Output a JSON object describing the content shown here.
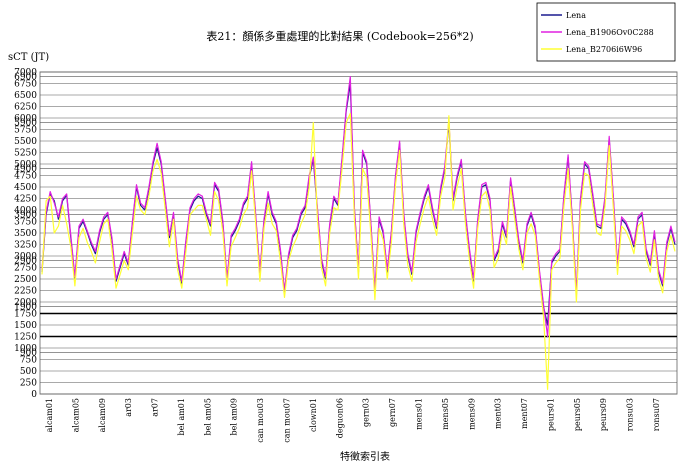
{
  "chart_data": {
    "type": "line",
    "title": "表21：顏係多重處理的比對結果 (Codebook=256*2)",
    "ylabel": "sCT (JT)",
    "xlabel": "特徵索引表",
    "ylim": [
      0,
      7000
    ],
    "grid": true,
    "legend_placement": "top-right",
    "y_ticks": [
      0,
      250,
      500,
      750,
      900,
      1000,
      1250,
      1500,
      1750,
      1900,
      2000,
      2250,
      2500,
      2750,
      2900,
      3000,
      3250,
      3500,
      3750,
      3900,
      4000,
      4250,
      4500,
      4750,
      4900,
      5000,
      5250,
      5500,
      5750,
      5900,
      6000,
      6250,
      6500,
      6750,
      6900,
      7000
    ],
    "y_tick_labels": [
      "0",
      "250",
      "500",
      "750",
      "900",
      "1000",
      "1250",
      "1500",
      "1750",
      "1900",
      "2000",
      "2250",
      "2500",
      "2750",
      "2900",
      "3000",
      "3250",
      "3500",
      "3750",
      "3900",
      "4000",
      "4250",
      "4500",
      "4750",
      "4900",
      "5000",
      "5250",
      "5500",
      "5750",
      "5900",
      "6000",
      "6250",
      "6500",
      "6750",
      "6900",
      "7000"
    ],
    "bold_lines": [
      1250,
      1750
    ],
    "x_tick_labels": [
      "alcam01",
      "alcam05",
      "alcam09",
      "ar03",
      "ar07",
      "bel am01",
      "bel am05",
      "bel am09",
      "can mou03",
      "can mou07",
      "clown01",
      "deguon06",
      "gern03",
      "gern07",
      "mens01",
      "mens05",
      "mens09",
      "ment03",
      "ment07",
      "peurs01",
      "peurs05",
      "peurs09",
      "ronsu03",
      "ronsu07"
    ],
    "colors": {
      "Lena": "#1b1b8f",
      "Lena_B1906Ov0C288": "#e020e0",
      "Lena_B2706i6W96": "#ffff33"
    },
    "series": [
      {
        "name": "Lena",
        "values": [
          2650,
          3900,
          4350,
          4200,
          3800,
          4200,
          4320,
          3400,
          2500,
          3600,
          3750,
          3520,
          3250,
          3050,
          3500,
          3800,
          3900,
          3350,
          2450,
          2750,
          3050,
          2800,
          3700,
          4500,
          4100,
          4000,
          4450,
          5000,
          5350,
          5000,
          4200,
          3400,
          3900,
          2900,
          2400,
          3300,
          4000,
          4200,
          4300,
          4250,
          3900,
          3650,
          4550,
          4400,
          3700,
          2450,
          3400,
          3550,
          3750,
          4100,
          4250,
          5000,
          3850,
          2600,
          3750,
          4350,
          3900,
          3700,
          3100,
          2200,
          3000,
          3400,
          3550,
          3900,
          4050,
          4700,
          5100,
          4000,
          2900,
          2500,
          3650,
          4250,
          4100,
          5100,
          6150,
          6750,
          4000,
          2650,
          5250,
          5000,
          3700,
          2200,
          3800,
          3500,
          2650,
          3500,
          4700,
          5450,
          3900,
          3000,
          2600,
          3500,
          3900,
          4250,
          4500,
          4000,
          3600,
          4450,
          4900,
          5900,
          4200,
          4700,
          5050,
          3900,
          3100,
          2450,
          3750,
          4500,
          4550,
          4200,
          2900,
          3100,
          3700,
          3400,
          4650,
          4000,
          3300,
          2850,
          3650,
          3900,
          3600,
          2650,
          1900,
          1500,
          2850,
          3000,
          3100,
          4300,
          5150,
          3800,
          2150,
          4200,
          5000,
          4900,
          4300,
          3650,
          3600,
          4250,
          5550,
          4250,
          2750,
          3800,
          3700,
          3500,
          3200,
          3800,
          3900,
          3100,
          2800,
          3500,
          2650,
          2350,
          3250,
          3600,
          3250
        ]
      },
      {
        "name": "Lena_B1906Ov0C288",
        "values": [
          2700,
          3950,
          4400,
          4150,
          3850,
          4250,
          4350,
          3450,
          2550,
          3650,
          3800,
          3550,
          3300,
          3100,
          3550,
          3850,
          3950,
          3400,
          2500,
          2800,
          3100,
          2850,
          3750,
          4550,
          4150,
          4050,
          4500,
          5050,
          5450,
          5050,
          4250,
          3450,
          3950,
          2950,
          2450,
          3350,
          4050,
          4250,
          4350,
          4300,
          3950,
          3700,
          4600,
          4450,
          3750,
          2500,
          3450,
          3600,
          3800,
          4150,
          4300,
          5050,
          3900,
          2650,
          3800,
          4400,
          3950,
          3750,
          3150,
          2250,
          3050,
          3450,
          3600,
          3950,
          4100,
          4750,
          5150,
          4050,
          2950,
          2550,
          3700,
          4300,
          4150,
          5150,
          6200,
          6900,
          4050,
          2700,
          5300,
          5050,
          3750,
          2250,
          3850,
          3550,
          2700,
          3550,
          4750,
          5500,
          3950,
          3050,
          2650,
          3550,
          3950,
          4300,
          4550,
          4050,
          3650,
          4500,
          4950,
          5950,
          4250,
          4750,
          5100,
          3950,
          3150,
          2500,
          3800,
          4550,
          4600,
          4250,
          2950,
          3150,
          3750,
          3450,
          4700,
          4050,
          3350,
          2900,
          3700,
          3950,
          3650,
          2700,
          1950,
          1250,
          2900,
          3050,
          3150,
          4350,
          5200,
          3850,
          2200,
          4250,
          5050,
          4950,
          4350,
          3700,
          3650,
          4300,
          5600,
          4300,
          2800,
          3850,
          3750,
          3550,
          3250,
          3850,
          3950,
          3150,
          2850,
          3550,
          2700,
          2400,
          3300,
          3650,
          3300
        ]
      },
      {
        "name": "Lena_B2706i6W96",
        "values": [
          2600,
          4200,
          4300,
          3500,
          3650,
          4100,
          3700,
          3200,
          2350,
          3400,
          3600,
          3300,
          3100,
          2850,
          3300,
          3700,
          3800,
          3150,
          2300,
          2600,
          2900,
          2700,
          3500,
          4300,
          4000,
          3900,
          4300,
          4850,
          5100,
          4800,
          4000,
          3200,
          3800,
          2700,
          2300,
          3100,
          3900,
          4000,
          4100,
          4100,
          3800,
          3450,
          4400,
          4200,
          3500,
          2350,
          3200,
          3400,
          3600,
          3900,
          4050,
          4850,
          3700,
          2450,
          3600,
          4150,
          3700,
          3550,
          2900,
          2100,
          2900,
          3200,
          3400,
          3700,
          3900,
          4500,
          5900,
          3800,
          2750,
          2350,
          3500,
          4050,
          4000,
          4900,
          5900,
          6100,
          3800,
          2500,
          4900,
          4700,
          3500,
          2050,
          3600,
          3350,
          2500,
          3300,
          4550,
          5300,
          3700,
          2800,
          2450,
          3300,
          3700,
          4050,
          4300,
          3800,
          3450,
          4300,
          4700,
          6050,
          4000,
          4500,
          4900,
          3700,
          2900,
          2300,
          3600,
          4300,
          4400,
          4000,
          2750,
          2950,
          3550,
          3250,
          4500,
          3800,
          3150,
          2700,
          3500,
          3700,
          3450,
          2500,
          1700,
          100,
          2700,
          2850,
          2950,
          4100,
          4900,
          3650,
          2000,
          4000,
          4800,
          4750,
          4100,
          3500,
          3450,
          4100,
          5400,
          4050,
          2600,
          3650,
          3550,
          3350,
          3050,
          3650,
          3750,
          2950,
          2650,
          3350,
          2500,
          2200,
          3100,
          3450,
          3100
        ]
      }
    ]
  }
}
